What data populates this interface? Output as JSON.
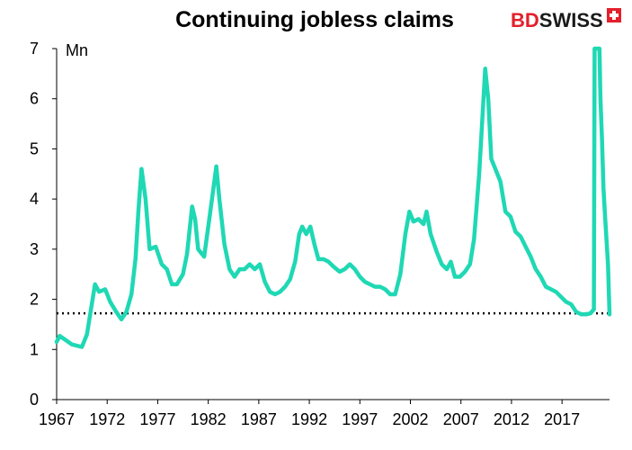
{
  "logo": {
    "part1": "BD",
    "part2": "SWISS",
    "color1": "#e3202b",
    "color2": "#1a1a1a"
  },
  "chart_data": {
    "type": "line",
    "title": "Continuing jobless claims",
    "unit_label": "Mn",
    "xlabel": "",
    "ylabel": "",
    "xlim": [
      1967,
      2021.7
    ],
    "ylim": [
      0,
      7
    ],
    "x_ticks": [
      "1967",
      "1972",
      "1977",
      "1982",
      "1987",
      "1992",
      "1997",
      "2002",
      "2007",
      "2012",
      "2017"
    ],
    "y_ticks": [
      "0",
      "1",
      "2",
      "3",
      "4",
      "5",
      "6",
      "7"
    ],
    "grid": false,
    "legend": "none",
    "series": [
      {
        "color": "#1fd8b4",
        "points": [
          [
            1967.0,
            1.15
          ],
          [
            1967.3,
            1.27
          ],
          [
            1967.8,
            1.2
          ],
          [
            1968.5,
            1.1
          ],
          [
            1969.5,
            1.05
          ],
          [
            1970.0,
            1.3
          ],
          [
            1970.4,
            1.8
          ],
          [
            1970.8,
            2.3
          ],
          [
            1971.2,
            2.15
          ],
          [
            1971.8,
            2.2
          ],
          [
            1972.3,
            1.95
          ],
          [
            1972.9,
            1.75
          ],
          [
            1973.4,
            1.6
          ],
          [
            1973.9,
            1.75
          ],
          [
            1974.4,
            2.1
          ],
          [
            1974.8,
            2.8
          ],
          [
            1975.1,
            3.8
          ],
          [
            1975.4,
            4.6
          ],
          [
            1975.8,
            4.0
          ],
          [
            1976.2,
            3.0
          ],
          [
            1976.8,
            3.05
          ],
          [
            1977.4,
            2.7
          ],
          [
            1977.9,
            2.6
          ],
          [
            1978.4,
            2.3
          ],
          [
            1978.9,
            2.3
          ],
          [
            1979.5,
            2.5
          ],
          [
            1979.9,
            2.9
          ],
          [
            1980.4,
            3.85
          ],
          [
            1980.7,
            3.6
          ],
          [
            1981.0,
            3.0
          ],
          [
            1981.6,
            2.85
          ],
          [
            1982.1,
            3.6
          ],
          [
            1982.5,
            4.2
          ],
          [
            1982.8,
            4.65
          ],
          [
            1983.1,
            4.0
          ],
          [
            1983.6,
            3.1
          ],
          [
            1984.1,
            2.6
          ],
          [
            1984.6,
            2.45
          ],
          [
            1985.1,
            2.6
          ],
          [
            1985.6,
            2.6
          ],
          [
            1986.1,
            2.7
          ],
          [
            1986.6,
            2.6
          ],
          [
            1987.1,
            2.7
          ],
          [
            1987.6,
            2.35
          ],
          [
            1988.1,
            2.15
          ],
          [
            1988.6,
            2.1
          ],
          [
            1989.1,
            2.15
          ],
          [
            1989.6,
            2.25
          ],
          [
            1990.1,
            2.4
          ],
          [
            1990.6,
            2.75
          ],
          [
            1991.0,
            3.3
          ],
          [
            1991.3,
            3.45
          ],
          [
            1991.7,
            3.3
          ],
          [
            1992.1,
            3.45
          ],
          [
            1992.5,
            3.1
          ],
          [
            1992.9,
            2.8
          ],
          [
            1993.4,
            2.8
          ],
          [
            1993.9,
            2.75
          ],
          [
            1994.4,
            2.65
          ],
          [
            1995.0,
            2.55
          ],
          [
            1995.5,
            2.6
          ],
          [
            1996.0,
            2.7
          ],
          [
            1996.5,
            2.6
          ],
          [
            1997.0,
            2.45
          ],
          [
            1997.5,
            2.35
          ],
          [
            1998.0,
            2.3
          ],
          [
            1998.5,
            2.25
          ],
          [
            1999.0,
            2.25
          ],
          [
            1999.5,
            2.2
          ],
          [
            2000.0,
            2.1
          ],
          [
            2000.5,
            2.1
          ],
          [
            2001.0,
            2.5
          ],
          [
            2001.5,
            3.3
          ],
          [
            2001.9,
            3.75
          ],
          [
            2002.3,
            3.55
          ],
          [
            2002.8,
            3.6
          ],
          [
            2003.3,
            3.5
          ],
          [
            2003.6,
            3.75
          ],
          [
            2004.0,
            3.3
          ],
          [
            2004.6,
            2.95
          ],
          [
            2005.1,
            2.7
          ],
          [
            2005.6,
            2.6
          ],
          [
            2006.0,
            2.75
          ],
          [
            2006.4,
            2.45
          ],
          [
            2006.9,
            2.45
          ],
          [
            2007.4,
            2.55
          ],
          [
            2007.9,
            2.7
          ],
          [
            2008.3,
            3.2
          ],
          [
            2008.8,
            4.5
          ],
          [
            2009.2,
            5.9
          ],
          [
            2009.4,
            6.6
          ],
          [
            2009.7,
            6.0
          ],
          [
            2010.0,
            4.8
          ],
          [
            2010.4,
            4.6
          ],
          [
            2010.9,
            4.35
          ],
          [
            2011.4,
            3.75
          ],
          [
            2011.9,
            3.65
          ],
          [
            2012.4,
            3.35
          ],
          [
            2012.9,
            3.25
          ],
          [
            2013.4,
            3.05
          ],
          [
            2013.9,
            2.85
          ],
          [
            2014.4,
            2.6
          ],
          [
            2014.9,
            2.45
          ],
          [
            2015.4,
            2.25
          ],
          [
            2015.9,
            2.2
          ],
          [
            2016.4,
            2.15
          ],
          [
            2016.9,
            2.05
          ],
          [
            2017.4,
            1.95
          ],
          [
            2017.9,
            1.9
          ],
          [
            2018.4,
            1.75
          ],
          [
            2018.9,
            1.7
          ],
          [
            2019.4,
            1.7
          ],
          [
            2019.8,
            1.72
          ],
          [
            2020.15,
            1.8
          ],
          [
            2020.22,
            7.0
          ],
          [
            2020.7,
            7.0
          ],
          [
            2020.8,
            6.0
          ],
          [
            2020.95,
            5.2
          ],
          [
            2021.1,
            4.2
          ],
          [
            2021.25,
            3.7
          ],
          [
            2021.4,
            3.2
          ],
          [
            2021.55,
            2.7
          ],
          [
            2021.7,
            1.7
          ]
        ]
      }
    ],
    "reference_line": {
      "y": 1.72,
      "style": "dotted"
    }
  }
}
